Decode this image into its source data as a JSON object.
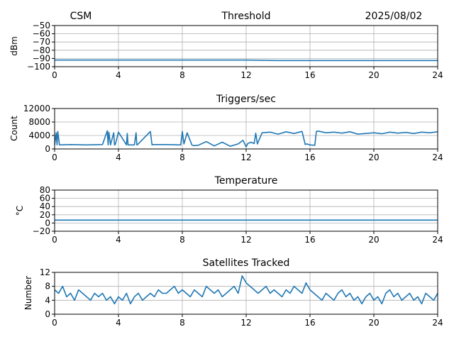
{
  "header": {
    "station": "CSM",
    "date": "2025/08/02"
  },
  "colors": {
    "series": "#1f77b4",
    "grid": "#b0b0b0",
    "axis": "#000000"
  },
  "chart_data": [
    {
      "type": "line",
      "title": "Threshold",
      "xlabel": "",
      "ylabel": "dBm",
      "xlim": [
        0,
        24
      ],
      "ylim": [
        -100,
        -50
      ],
      "xticks": [
        0,
        4,
        8,
        12,
        16,
        20,
        24
      ],
      "xtick_labels": [
        "0",
        "4",
        "8",
        "12",
        "16",
        "20",
        "24"
      ],
      "yticks": [
        -100,
        -90,
        -80,
        -70,
        -60,
        -50
      ],
      "ytick_labels": [
        "−100",
        "−90",
        "−80",
        "−70",
        "−60",
        "−50"
      ],
      "grid": true,
      "series": [
        {
          "x": [
            0,
            2,
            4,
            6,
            8,
            10,
            12,
            14,
            16,
            18,
            20,
            22,
            24
          ],
          "y": [
            -92,
            -92,
            -92,
            -92,
            -92,
            -92,
            -92,
            -92.5,
            -92.5,
            -92.5,
            -92.5,
            -92.5,
            -92.5
          ]
        }
      ]
    },
    {
      "type": "line",
      "title": "Triggers/sec",
      "xlabel": "",
      "ylabel": "Count",
      "xlim": [
        0,
        24
      ],
      "ylim": [
        0,
        12000
      ],
      "xticks": [
        0,
        4,
        8,
        12,
        16,
        20,
        24
      ],
      "xtick_labels": [
        "0",
        "4",
        "8",
        "12",
        "16",
        "20",
        "24"
      ],
      "yticks": [
        0,
        4000,
        8000,
        12000
      ],
      "ytick_labels": [
        "0",
        "4000",
        "8000",
        "12000"
      ],
      "grid": true,
      "series": [
        {
          "x": [
            0,
            0.1,
            0.15,
            0.2,
            0.3,
            1,
            2,
            3,
            3.3,
            3.35,
            3.4,
            3.5,
            3.7,
            3.75,
            3.8,
            4,
            4.5,
            4.55,
            4.6,
            5,
            5.1,
            5.15,
            5.2,
            6,
            6.1,
            6.15,
            6.2,
            7,
            7.9,
            8,
            8.1,
            8.3,
            8.6,
            8.7,
            9,
            9.5,
            10,
            10.5,
            11,
            11.5,
            11.8,
            12,
            12.1,
            12.3,
            12.5,
            12.6,
            12.7,
            13,
            13.5,
            14,
            14.5,
            15,
            15.5,
            15.7,
            15.8,
            16,
            16.3,
            16.4,
            16.5,
            17,
            17.5,
            18,
            18.5,
            19,
            19.5,
            20,
            20.5,
            21,
            21.5,
            22,
            22.5,
            23,
            23.5,
            24
          ],
          "y": [
            1200,
            4800,
            1200,
            5200,
            1200,
            1300,
            1200,
            1300,
            5400,
            1200,
            5000,
            1200,
            4800,
            1200,
            1300,
            5000,
            1200,
            4600,
            1200,
            1200,
            4800,
            1200,
            1300,
            5200,
            1200,
            1300,
            1300,
            1300,
            1200,
            5200,
            1500,
            4800,
            1200,
            1000,
            1100,
            2200,
            900,
            2000,
            800,
            1500,
            2600,
            600,
            1600,
            2000,
            1600,
            4700,
            1500,
            4800,
            5000,
            4400,
            5100,
            4600,
            5200,
            1300,
            1500,
            1200,
            1100,
            5200,
            5300,
            4800,
            5000,
            4700,
            5100,
            4400,
            4600,
            4800,
            4500,
            5000,
            4700,
            4900,
            4600,
            5000,
            4800,
            5100
          ]
        }
      ]
    },
    {
      "type": "line",
      "title": "Temperature",
      "xlabel": "",
      "ylabel": "°C",
      "xlim": [
        0,
        24
      ],
      "ylim": [
        -20,
        80
      ],
      "xticks": [
        0,
        4,
        8,
        12,
        16,
        20,
        24
      ],
      "xtick_labels": [
        "0",
        "4",
        "8",
        "12",
        "16",
        "20",
        "24"
      ],
      "yticks": [
        -20,
        0,
        20,
        40,
        60,
        80
      ],
      "ytick_labels": [
        "−20",
        "0",
        "20",
        "40",
        "60",
        "80"
      ],
      "grid": true,
      "series": [
        {
          "x": [
            0,
            4,
            8,
            12,
            16,
            20,
            24
          ],
          "y": [
            7,
            7,
            7,
            7,
            7,
            7,
            7
          ]
        }
      ]
    },
    {
      "type": "line",
      "title": "Satellites Tracked",
      "xlabel": "",
      "ylabel": "Number",
      "xlim": [
        0,
        24
      ],
      "ylim": [
        0,
        12
      ],
      "xticks": [
        0,
        4,
        8,
        12,
        16,
        20,
        24
      ],
      "xtick_labels": [
        "0",
        "4",
        "8",
        "12",
        "16",
        "20",
        "24"
      ],
      "yticks": [
        0,
        4,
        8,
        12
      ],
      "ytick_labels": [
        "0",
        "4",
        "8",
        "12"
      ],
      "grid": true,
      "series": [
        {
          "x": [
            0,
            0.25,
            0.5,
            0.75,
            1,
            1.25,
            1.5,
            1.75,
            2,
            2.25,
            2.5,
            2.75,
            3,
            3.25,
            3.5,
            3.75,
            4,
            4.25,
            4.5,
            4.75,
            5,
            5.25,
            5.5,
            5.75,
            6,
            6.25,
            6.5,
            6.75,
            7,
            7.25,
            7.5,
            7.75,
            8,
            8.25,
            8.5,
            8.75,
            9,
            9.25,
            9.5,
            9.75,
            10,
            10.25,
            10.5,
            10.75,
            11,
            11.25,
            11.5,
            11.75,
            12,
            12.25,
            12.5,
            12.75,
            13,
            13.25,
            13.5,
            13.75,
            14,
            14.25,
            14.5,
            14.75,
            15,
            15.25,
            15.5,
            15.75,
            16,
            16.25,
            16.5,
            16.75,
            17,
            17.25,
            17.5,
            17.75,
            18,
            18.25,
            18.5,
            18.75,
            19,
            19.25,
            19.5,
            19.75,
            20,
            20.25,
            20.5,
            20.75,
            21,
            21.25,
            21.5,
            21.75,
            22,
            22.25,
            22.5,
            22.75,
            23,
            23.25,
            23.5,
            23.75,
            24
          ],
          "y": [
            7,
            6,
            8,
            5,
            6,
            4,
            7,
            6,
            5,
            4,
            6,
            5,
            6,
            4,
            5,
            3,
            5,
            4,
            6,
            3,
            5,
            6,
            4,
            5,
            6,
            5,
            7,
            6,
            6,
            7,
            8,
            6,
            7,
            6,
            5,
            7,
            6,
            5,
            8,
            7,
            6,
            7,
            5,
            6,
            7,
            8,
            6,
            11,
            9,
            8,
            7,
            6,
            7,
            8,
            6,
            7,
            6,
            5,
            7,
            6,
            8,
            7,
            6,
            9,
            7,
            6,
            5,
            4,
            6,
            5,
            4,
            6,
            7,
            5,
            6,
            4,
            5,
            3,
            5,
            6,
            4,
            5,
            3,
            6,
            7,
            5,
            6,
            4,
            5,
            6,
            4,
            5,
            3,
            6,
            5,
            4,
            6
          ]
        }
      ]
    }
  ]
}
